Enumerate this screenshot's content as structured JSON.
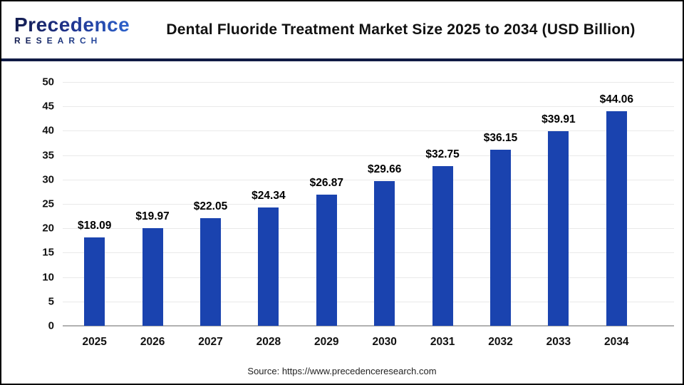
{
  "header": {
    "logo": {
      "name": "Precedence",
      "sub": "RESEARCH"
    },
    "title": "Dental Fluoride Treatment Market Size 2025 to 2034 (USD Billion)"
  },
  "chart_data": {
    "type": "bar",
    "title": "Dental Fluoride Treatment Market Size 2025 to 2034 (USD Billion)",
    "categories": [
      "2025",
      "2026",
      "2027",
      "2028",
      "2029",
      "2030",
      "2031",
      "2032",
      "2033",
      "2034"
    ],
    "values": [
      18.09,
      19.97,
      22.05,
      24.34,
      26.87,
      29.66,
      32.75,
      36.15,
      39.91,
      44.06
    ],
    "value_labels": [
      "$18.09",
      "$19.97",
      "$22.05",
      "$24.34",
      "$26.87",
      "$29.66",
      "$32.75",
      "$36.15",
      "$39.91",
      "$44.06"
    ],
    "xlabel": "",
    "ylabel": "",
    "ylim": [
      0,
      50
    ],
    "yticks": [
      0,
      5,
      10,
      15,
      20,
      25,
      30,
      35,
      40,
      45,
      50
    ],
    "grid": true,
    "legend": "none",
    "bar_color": "#1a43af"
  },
  "footer": {
    "source": "Source: https://www.precedenceresearch.com"
  },
  "colors": {
    "bar": "#1a43af",
    "header_rule": "#101b45",
    "gridline": "#e9e9e9",
    "axis_line": "#b1b1b1",
    "title_text": "#111111",
    "logo_dark": "#131c4e",
    "logo_light": "#2f6bd8",
    "background": "#ffffff"
  }
}
